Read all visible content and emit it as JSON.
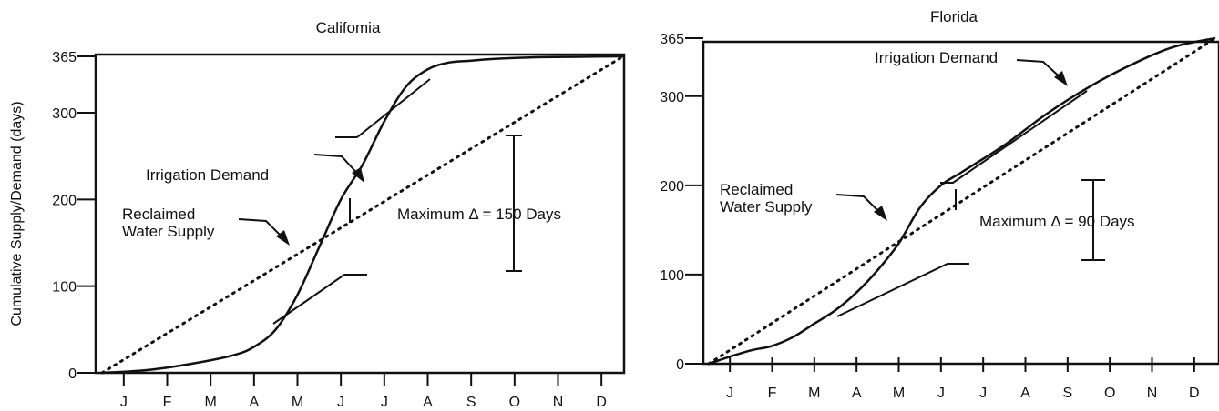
{
  "axis": {
    "ylabel": "Cumulative Supply/Demand (days)",
    "months": [
      "J",
      "F",
      "M",
      "A",
      "M",
      "J",
      "J",
      "A",
      "S",
      "O",
      "N",
      "D"
    ]
  },
  "chart_data": [
    {
      "type": "line",
      "title": "Califomia",
      "ylabel": "Cumulative Supply/Demand (days)",
      "xlabel": "",
      "yticks": [
        0,
        100,
        200,
        300,
        365
      ],
      "ylim": [
        0,
        365
      ],
      "xlim": [
        0,
        12
      ],
      "grid": false,
      "series": [
        {
          "name": "Irrigation Demand",
          "x": [
            0,
            1,
            2,
            3,
            3.5,
            4,
            4.5,
            5,
            5.5,
            6,
            6.5,
            7,
            7.5,
            8,
            8.5,
            9,
            10,
            11,
            12
          ],
          "y": [
            0,
            3,
            10,
            20,
            30,
            50,
            90,
            145,
            200,
            240,
            290,
            330,
            350,
            358,
            360,
            362,
            364,
            364.5,
            365
          ]
        },
        {
          "name": "Reclaimed Water Supply",
          "x": [
            0,
            12
          ],
          "y": [
            0,
            365
          ]
        }
      ],
      "annotations": {
        "demand_label": "Irrigation Demand",
        "supply_label_1": "Reclaimed",
        "supply_label_2": "Water Supply",
        "max_delta": "Maximum Δ  = 150 Days"
      }
    },
    {
      "type": "line",
      "title": "Florida",
      "ylabel": "",
      "xlabel": "",
      "yticks": [
        0,
        100,
        200,
        300,
        365
      ],
      "ylim": [
        0,
        365
      ],
      "xlim": [
        0,
        12
      ],
      "grid": false,
      "series": [
        {
          "name": "Irrigation Demand",
          "x": [
            0,
            0.5,
            1,
            1.5,
            2,
            2.5,
            3,
            3.5,
            4,
            4.5,
            5,
            5.5,
            6,
            7,
            8,
            9,
            10,
            11,
            12
          ],
          "y": [
            0,
            8,
            15,
            20,
            30,
            45,
            60,
            80,
            105,
            135,
            175,
            200,
            215,
            245,
            280,
            310,
            335,
            355,
            365
          ]
        },
        {
          "name": "Reclaimed Water Supply",
          "x": [
            0,
            12
          ],
          "y": [
            0,
            365
          ]
        }
      ],
      "annotations": {
        "demand_label": "Irrigation Demand",
        "supply_label_1": "Reclaimed",
        "supply_label_2": "Water Supply",
        "max_delta": "Maximum Δ  = 90 Days"
      }
    }
  ]
}
